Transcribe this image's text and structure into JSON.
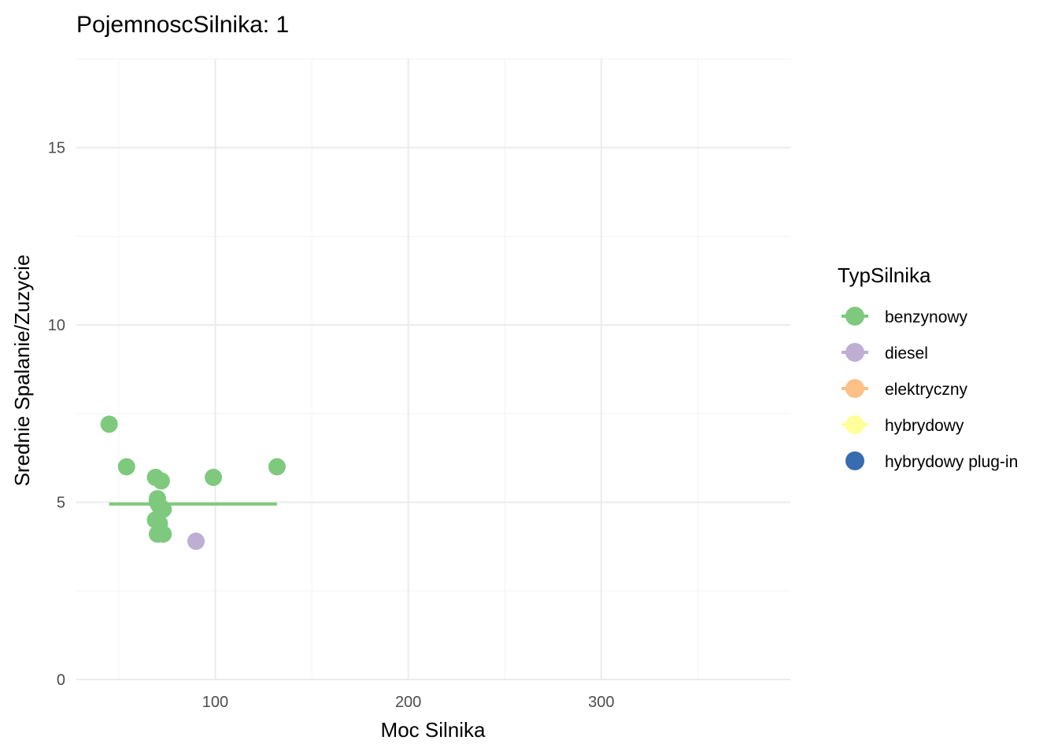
{
  "chart_data": {
    "type": "scatter",
    "title": "PojemnoscSilnika: 1",
    "xlabel": "Moc Silnika",
    "ylabel": "Srednie Spalanie/Zuzycie",
    "xlim": [
      28,
      398
    ],
    "ylim": [
      0,
      17.5
    ],
    "x_ticks": [
      {
        "value": 100,
        "label": "100"
      },
      {
        "value": 200,
        "label": "200"
      },
      {
        "value": 300,
        "label": "300"
      }
    ],
    "y_ticks": [
      {
        "value": 0,
        "label": "0"
      },
      {
        "value": 5,
        "label": "5"
      },
      {
        "value": 10,
        "label": "10"
      },
      {
        "value": 15,
        "label": "15"
      }
    ],
    "x_minor": [
      50,
      150,
      250,
      350
    ],
    "y_minor": [
      2.5,
      7.5,
      12.5,
      17.5
    ],
    "grid": true,
    "legend": {
      "title": "TypSilnika",
      "position": "right",
      "entries": [
        {
          "label": "benzynowy",
          "color": "#7fc97f",
          "has_line": true
        },
        {
          "label": "diesel",
          "color": "#beaed4",
          "has_line": true
        },
        {
          "label": "elektryczny",
          "color": "#fdc086",
          "has_line": true
        },
        {
          "label": "hybrydowy",
          "color": "#ffff99",
          "has_line": true
        },
        {
          "label": "hybrydowy plug-in",
          "color": "#386cb0",
          "has_line": false
        }
      ]
    },
    "series": [
      {
        "name": "benzynowy",
        "color": "#7fc97f",
        "points": [
          {
            "x": 45,
            "y": 7.2
          },
          {
            "x": 54,
            "y": 6.0
          },
          {
            "x": 69,
            "y": 5.7
          },
          {
            "x": 72,
            "y": 5.6
          },
          {
            "x": 70,
            "y": 5.1
          },
          {
            "x": 70,
            "y": 5.0
          },
          {
            "x": 71,
            "y": 4.9
          },
          {
            "x": 73,
            "y": 4.8
          },
          {
            "x": 69,
            "y": 4.5
          },
          {
            "x": 71,
            "y": 4.4
          },
          {
            "x": 70,
            "y": 4.1
          },
          {
            "x": 73,
            "y": 4.1
          },
          {
            "x": 99,
            "y": 5.7
          },
          {
            "x": 132,
            "y": 6.0
          }
        ],
        "trend": {
          "x": [
            45,
            132
          ],
          "y": [
            4.95,
            4.95
          ]
        }
      },
      {
        "name": "diesel",
        "color": "#beaed4",
        "points": [
          {
            "x": 90,
            "y": 3.9
          }
        ]
      }
    ]
  }
}
